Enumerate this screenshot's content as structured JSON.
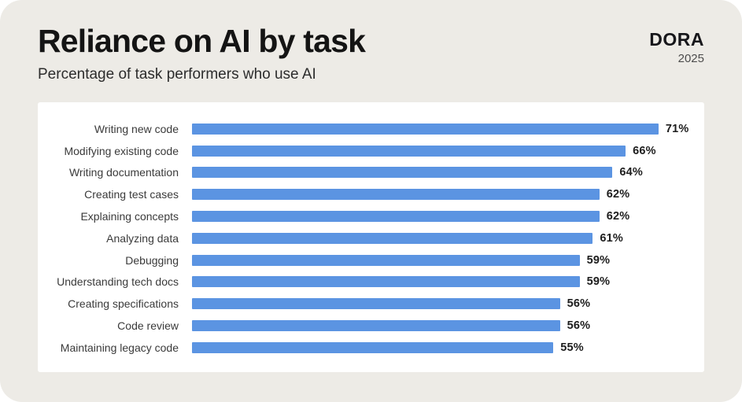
{
  "header": {
    "title": "Reliance on AI by task",
    "subtitle": "Percentage of task performers who use AI",
    "brand": "DORA",
    "year": "2025"
  },
  "colors": {
    "bar": "#5B94E2",
    "frame_background": "#EDEBE6",
    "card_background": "#FFFFFF"
  },
  "chart_data": {
    "type": "bar",
    "orientation": "horizontal",
    "title": "Reliance on AI by task",
    "subtitle": "Percentage of task performers who use AI",
    "unit": "%",
    "xlim": [
      0,
      75
    ],
    "grid": false,
    "legend": false,
    "value_labels": true,
    "categories": [
      "Writing new code",
      "Modifying existing code",
      "Writing documentation",
      "Creating test cases",
      "Explaining concepts",
      "Analyzing data",
      "Debugging",
      "Understanding tech docs",
      "Creating specifications",
      "Code review",
      "Maintaining legacy code"
    ],
    "values": [
      71,
      66,
      64,
      62,
      62,
      61,
      59,
      59,
      56,
      56,
      55
    ]
  }
}
